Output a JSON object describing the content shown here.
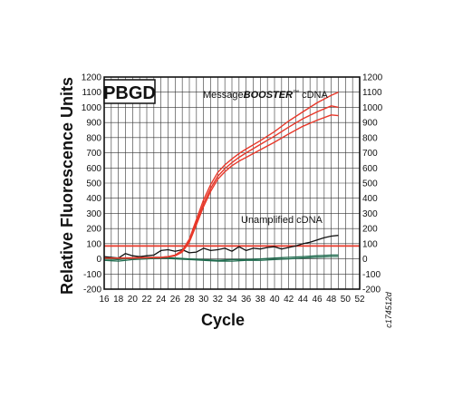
{
  "chart_data": {
    "type": "line",
    "badge": "PBGD",
    "xlabel": "Cycle",
    "ylabel": "Relative Fluorescence Units",
    "catalog_code": "c174512d",
    "xlim": [
      16,
      52
    ],
    "ylim": [
      -200,
      1200
    ],
    "x_ticks": [
      16,
      18,
      20,
      22,
      24,
      26,
      28,
      30,
      32,
      34,
      36,
      38,
      40,
      42,
      44,
      46,
      48,
      50,
      52
    ],
    "y_ticks": [
      -200,
      -100,
      0,
      100,
      200,
      300,
      400,
      500,
      600,
      700,
      800,
      900,
      1000,
      1100,
      1200
    ],
    "grid": true,
    "threshold": {
      "value": 85,
      "color": "#e8382a"
    },
    "annotations": {
      "booster_prefix": "Message",
      "booster_italic": "BOOSTER",
      "booster_tm": "™",
      "booster_suffix": " cDNA",
      "unamplified": "Unamplified cDNA"
    },
    "colors": {
      "booster": "#e8382a",
      "unamplified": "#111111",
      "ntc": "#1f6b4e",
      "threshold": "#e8382a"
    },
    "series": [
      {
        "group": "booster",
        "x": [
          16,
          18,
          20,
          22,
          24,
          25,
          26,
          27,
          28,
          29,
          30,
          31,
          32,
          33,
          34,
          35,
          36,
          38,
          40,
          42,
          44,
          46,
          48,
          49
        ],
        "y": [
          5,
          5,
          6,
          8,
          10,
          15,
          25,
          55,
          130,
          260,
          390,
          490,
          570,
          620,
          660,
          695,
          725,
          780,
          840,
          910,
          970,
          1030,
          1080,
          1100
        ]
      },
      {
        "group": "booster",
        "x": [
          16,
          18,
          20,
          22,
          24,
          25,
          26,
          27,
          28,
          29,
          30,
          31,
          32,
          33,
          34,
          35,
          36,
          38,
          40,
          42,
          44,
          46,
          48,
          49
        ],
        "y": [
          5,
          5,
          6,
          8,
          10,
          14,
          22,
          50,
          120,
          240,
          365,
          465,
          545,
          595,
          635,
          670,
          700,
          755,
          810,
          870,
          925,
          970,
          1010,
          1000
        ]
      },
      {
        "group": "booster",
        "x": [
          16,
          18,
          20,
          22,
          24,
          25,
          26,
          27,
          28,
          29,
          30,
          31,
          32,
          33,
          34,
          35,
          36,
          38,
          40,
          42,
          44,
          46,
          48,
          49
        ],
        "y": [
          5,
          5,
          6,
          7,
          9,
          13,
          20,
          45,
          110,
          225,
          345,
          445,
          525,
          575,
          615,
          645,
          670,
          720,
          770,
          825,
          875,
          915,
          950,
          945
        ]
      },
      {
        "group": "unamplified",
        "x": [
          16,
          17,
          18,
          19,
          20,
          21,
          22,
          23,
          24,
          25,
          26,
          27,
          28,
          29,
          30,
          31,
          32,
          33,
          34,
          35,
          36,
          37,
          38,
          39,
          40,
          41,
          42,
          43,
          44,
          45,
          46,
          47,
          48,
          49
        ],
        "y": [
          15,
          10,
          5,
          35,
          20,
          15,
          20,
          25,
          55,
          60,
          50,
          60,
          40,
          45,
          70,
          55,
          60,
          70,
          50,
          80,
          55,
          70,
          65,
          75,
          80,
          65,
          75,
          85,
          100,
          110,
          125,
          140,
          150,
          155
        ]
      },
      {
        "group": "ntc",
        "x": [
          16,
          18,
          20,
          22,
          24,
          26,
          28,
          30,
          32,
          34,
          36,
          38,
          40,
          42,
          44,
          46,
          48,
          49
        ],
        "y": [
          -10,
          -15,
          -5,
          0,
          5,
          0,
          -5,
          -10,
          -15,
          -15,
          -10,
          -10,
          -5,
          0,
          5,
          10,
          15,
          15
        ]
      },
      {
        "group": "ntc",
        "x": [
          16,
          18,
          20,
          22,
          24,
          26,
          28,
          30,
          32,
          34,
          36,
          38,
          40,
          42,
          44,
          46,
          48,
          49
        ],
        "y": [
          0,
          -5,
          5,
          10,
          10,
          5,
          0,
          -5,
          -10,
          -5,
          -5,
          0,
          5,
          10,
          15,
          20,
          25,
          25
        ]
      }
    ]
  }
}
